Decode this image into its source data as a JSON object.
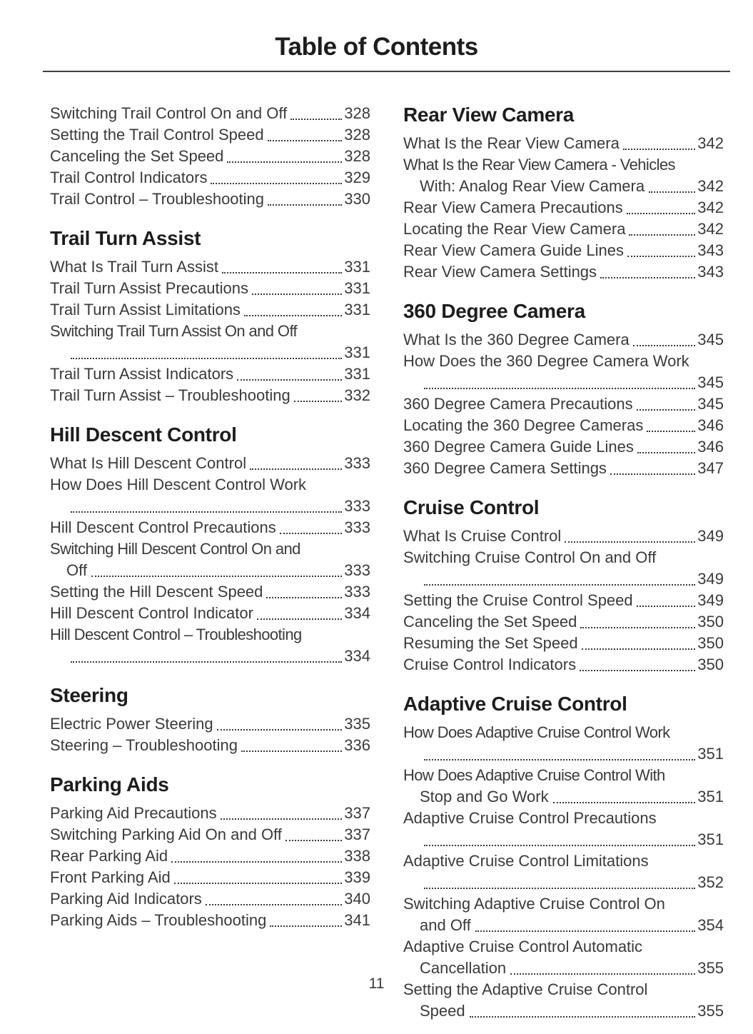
{
  "page": {
    "title": "Table of Contents",
    "page_number": "11"
  },
  "columns": [
    {
      "sections": [
        {
          "heading": null,
          "entries": [
            {
              "label": "Switching Trail Control On and Off",
              "page": "328"
            },
            {
              "label": "Setting the Trail Control Speed",
              "page": "328"
            },
            {
              "label": "Canceling the Set Speed",
              "page": "328"
            },
            {
              "label": "Trail Control Indicators",
              "page": "329"
            },
            {
              "label": "Trail Control – Troubleshooting",
              "page": "330"
            }
          ]
        },
        {
          "heading": "Trail Turn Assist",
          "entries": [
            {
              "label": "What Is Trail Turn Assist",
              "page": "331"
            },
            {
              "label": "Trail Turn Assist Precautions",
              "page": "331"
            },
            {
              "label": "Trail Turn Assist Limitations",
              "page": "331"
            },
            {
              "label": "Switching Trail Turn Assist On and Off",
              "page": "331",
              "wrap": true,
              "cont": ""
            },
            {
              "label": "Trail Turn Assist Indicators",
              "page": "331"
            },
            {
              "label": "Trail Turn Assist – Troubleshooting",
              "page": "332"
            }
          ]
        },
        {
          "heading": "Hill Descent Control",
          "entries": [
            {
              "label": "What Is Hill Descent Control",
              "page": "333"
            },
            {
              "label": "How Does Hill Descent Control Work",
              "page": "333",
              "wrap": true,
              "cont": ""
            },
            {
              "label": "Hill Descent Control Precautions",
              "page": "333"
            },
            {
              "label": "Switching Hill Descent Control On and",
              "page": "333",
              "wrap": true,
              "cont": "Off"
            },
            {
              "label": "Setting the Hill Descent Speed",
              "page": "333"
            },
            {
              "label": "Hill Descent Control Indicator",
              "page": "334"
            },
            {
              "label": "Hill Descent Control – Troubleshooting",
              "page": "334",
              "wrap": true,
              "cont": ""
            }
          ]
        },
        {
          "heading": "Steering",
          "entries": [
            {
              "label": "Electric Power Steering",
              "page": "335"
            },
            {
              "label": "Steering – Troubleshooting",
              "page": "336"
            }
          ]
        },
        {
          "heading": "Parking Aids",
          "entries": [
            {
              "label": "Parking Aid Precautions",
              "page": "337"
            },
            {
              "label": "Switching Parking Aid On and Off",
              "page": "337"
            },
            {
              "label": "Rear Parking Aid",
              "page": "338"
            },
            {
              "label": "Front Parking Aid",
              "page": "339"
            },
            {
              "label": "Parking Aid Indicators",
              "page": "340"
            },
            {
              "label": "Parking Aids – Troubleshooting",
              "page": "341"
            }
          ]
        }
      ]
    },
    {
      "sections": [
        {
          "heading": "Rear View Camera",
          "entries": [
            {
              "label": "What Is the Rear View Camera",
              "page": "342"
            },
            {
              "label": "What Is the Rear View Camera - Vehicles",
              "page": "342",
              "wrap": true,
              "cont": "With: Analog Rear View Camera"
            },
            {
              "label": "Rear View Camera Precautions",
              "page": "342"
            },
            {
              "label": "Locating the Rear View Camera",
              "page": "342"
            },
            {
              "label": "Rear View Camera Guide Lines",
              "page": "343"
            },
            {
              "label": "Rear View Camera Settings",
              "page": "343"
            }
          ]
        },
        {
          "heading": "360 Degree Camera",
          "entries": [
            {
              "label": "What Is the 360 Degree Camera",
              "page": "345"
            },
            {
              "label": "How Does the 360 Degree Camera Work",
              "page": "345",
              "wrap": true,
              "cont": ""
            },
            {
              "label": "360 Degree Camera Precautions",
              "page": "345"
            },
            {
              "label": "Locating the 360 Degree Cameras",
              "page": "346"
            },
            {
              "label": "360 Degree Camera Guide Lines",
              "page": "346"
            },
            {
              "label": "360 Degree Camera Settings",
              "page": "347"
            }
          ]
        },
        {
          "heading": "Cruise Control",
          "entries": [
            {
              "label": "What Is Cruise Control",
              "page": "349"
            },
            {
              "label": "Switching Cruise Control On and Off",
              "page": "349",
              "wrap": true,
              "cont": ""
            },
            {
              "label": "Setting the Cruise Control Speed",
              "page": "349"
            },
            {
              "label": "Canceling the Set Speed",
              "page": "350"
            },
            {
              "label": "Resuming the Set Speed",
              "page": "350"
            },
            {
              "label": "Cruise Control Indicators",
              "page": "350"
            }
          ]
        },
        {
          "heading": "Adaptive Cruise Control",
          "entries": [
            {
              "label": "How Does Adaptive Cruise Control Work",
              "page": "351",
              "wrap": true,
              "cont": ""
            },
            {
              "label": "How Does Adaptive Cruise Control With",
              "page": "351",
              "wrap": true,
              "cont": "Stop and Go Work"
            },
            {
              "label": "Adaptive Cruise Control Precautions",
              "page": "351",
              "wrap": true,
              "cont": ""
            },
            {
              "label": "Adaptive Cruise Control Limitations",
              "page": "352",
              "wrap": true,
              "cont": ""
            },
            {
              "label": "Switching Adaptive Cruise Control On",
              "page": "354",
              "wrap": true,
              "cont": "and Off"
            },
            {
              "label": "Adaptive Cruise Control Automatic",
              "page": "355",
              "wrap": true,
              "cont": "Cancellation"
            },
            {
              "label": "Setting the Adaptive Cruise Control",
              "page": "355",
              "wrap": true,
              "cont": "Speed"
            }
          ]
        }
      ]
    }
  ]
}
